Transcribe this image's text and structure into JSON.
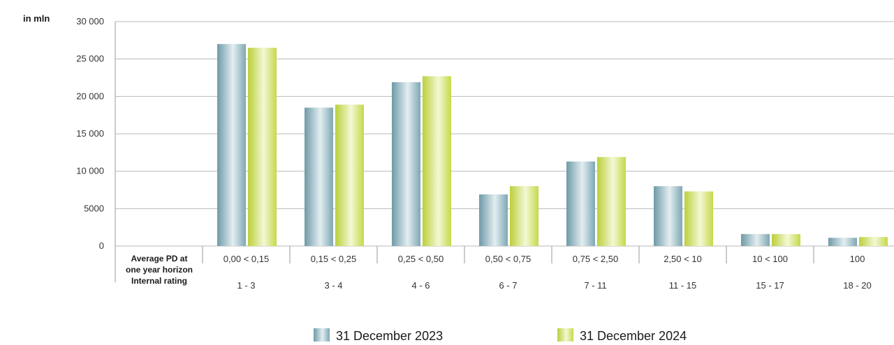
{
  "chart_data": {
    "type": "bar",
    "unit_label": "in mln",
    "row_labels": {
      "pd_line1": "Average PD at",
      "pd_line2": "one year horizon",
      "rating": "Internal rating"
    },
    "categories": [
      "0,00 < 0,15",
      "0,15 < 0,25",
      "0,25 < 0,50",
      "0,50 < 0,75",
      "0,75 < 2,50",
      "2,50 < 10",
      "10 < 100",
      "100"
    ],
    "internal_ratings": [
      "1 - 3",
      "3 - 4",
      "4 - 6",
      "6 - 7",
      "7 - 11",
      "11 - 15",
      "15 - 17",
      "18 - 20"
    ],
    "series": [
      {
        "name": "31 December 2023",
        "values": [
          27000,
          18500,
          21900,
          6900,
          11300,
          8000,
          1600,
          1100
        ]
      },
      {
        "name": "31 December 2024",
        "values": [
          26500,
          18900,
          22700,
          8000,
          11900,
          7300,
          1600,
          1200
        ]
      }
    ],
    "ylim": [
      0,
      30000
    ],
    "yticks": [
      {
        "value": 0,
        "label": "0"
      },
      {
        "value": 5000,
        "label": "5000"
      },
      {
        "value": 10000,
        "label": "10 000"
      },
      {
        "value": 15000,
        "label": "15 000"
      },
      {
        "value": 20000,
        "label": "20 000"
      },
      {
        "value": 25000,
        "label": "25 000"
      },
      {
        "value": 30000,
        "label": "30 000"
      }
    ],
    "grid": true,
    "legend_position": "bottom",
    "colors": {
      "series_2023": [
        "#6e9aa7",
        "#e3eef1",
        "#7ea7b3"
      ],
      "series_2024": [
        "#bccf3a",
        "#f3f8d4",
        "#c6d84a"
      ],
      "grid": "#b9b9b9",
      "axis": "#9a9a9a"
    }
  }
}
